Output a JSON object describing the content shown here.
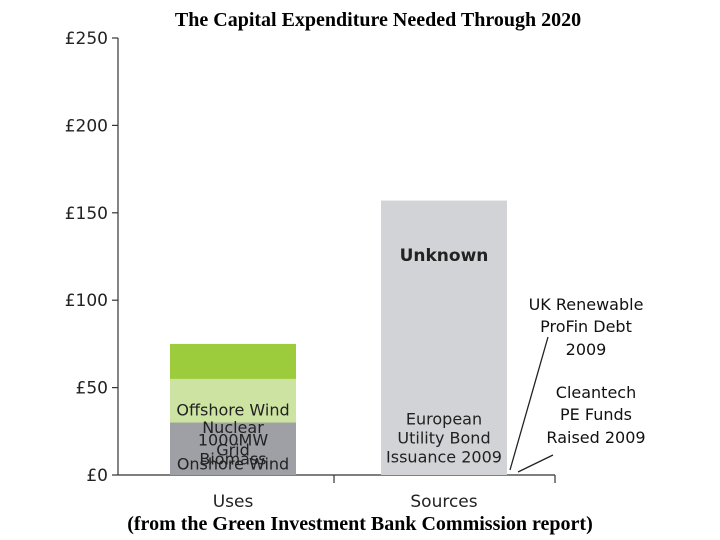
{
  "chart_data": {
    "type": "bar",
    "stacked": true,
    "title": "The Capital Expenditure Needed Through 2020",
    "subtitle": "(from the Green Investment Bank Commission report)",
    "categories": [
      "Uses",
      "Sources"
    ],
    "ylim": [
      0,
      250
    ],
    "yticks": [
      "£0",
      "£50",
      "£100",
      "£150",
      "£200",
      "£250"
    ],
    "ytick_values": [
      0,
      50,
      100,
      150,
      200,
      250
    ],
    "grid": false,
    "stacks": [
      {
        "category": "Uses",
        "segments": [
          {
            "label": "Offshore Wind",
            "value": 75,
            "color": "#9ccb3b"
          },
          {
            "label": "Onshore Wind",
            "value": 13,
            "color": "#e3efc5"
          },
          {
            "label": "Nuclear",
            "value": 55,
            "color": "#cde3a1"
          },
          {
            "label": "Grid",
            "value": 29,
            "color": "#b4d670"
          },
          {
            "label": "1000MW Biomass",
            "value": 30,
            "color": "#9ea0a5"
          }
        ]
      },
      {
        "category": "Sources",
        "segments": [
          {
            "label": "Cleantech PE Funds Raised 2009",
            "value": 0.5,
            "color": "#6d6f73"
          },
          {
            "label": "UK Renewable ProFin Debt 2009",
            "value": 2.5,
            "color": "#55575b"
          },
          {
            "label": "European Utility Bond Issuance 2009",
            "value": 43,
            "color": "#8e9095"
          },
          {
            "label": "Unknown",
            "value": 157,
            "color": "#d2d3d6"
          }
        ]
      }
    ],
    "callouts": [
      {
        "text": "UK Renewable ProFin Debt 2009"
      },
      {
        "text": "Cleantech PE Funds Raised 2009"
      }
    ]
  }
}
